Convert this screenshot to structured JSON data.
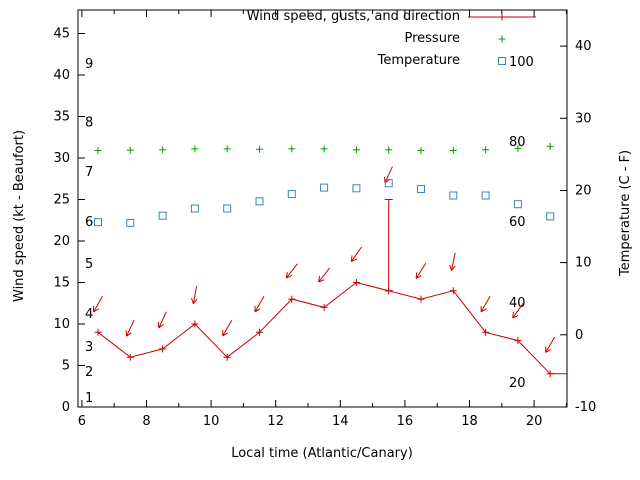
{
  "chart_data": {
    "type": "line",
    "title": "",
    "xlabel": "Local time (Atlantic/Canary)",
    "ylabel_left": "Wind speed (kt - Beaufort)",
    "ylabel_right": "Temperature (C - F)",
    "xlim": [
      5.88,
      21.02
    ],
    "ylim_left": [
      0,
      47.83
    ],
    "ylim_right": [
      -10,
      45
    ],
    "x_ticks": [
      6,
      8,
      10,
      12,
      14,
      16,
      18,
      20
    ],
    "x_minor_ticks": [
      7,
      9,
      11,
      13,
      15,
      17,
      19,
      21
    ],
    "y_ticks_left": [
      0,
      5,
      10,
      15,
      20,
      25,
      30,
      35,
      40,
      45
    ],
    "y_ticks_right": [
      -10,
      0,
      10,
      20,
      30,
      40
    ],
    "beaufort_scale": [
      {
        "bf": "1",
        "kt": 1.1
      },
      {
        "bf": "2",
        "kt": 4.2
      },
      {
        "bf": "3",
        "kt": 7.2
      },
      {
        "bf": "4",
        "kt": 11.2
      },
      {
        "bf": "5",
        "kt": 17.2
      },
      {
        "bf": "6",
        "kt": 22.3
      },
      {
        "bf": "7",
        "kt": 28.3
      },
      {
        "bf": "8",
        "kt": 34.3
      },
      {
        "bf": "9",
        "kt": 41.3
      }
    ],
    "fahrenheit_scale": [
      {
        "f": "20",
        "c": -6.7
      },
      {
        "f": "40",
        "c": 4.4
      },
      {
        "f": "60",
        "c": 15.6
      },
      {
        "f": "80",
        "c": 26.7
      },
      {
        "f": "100",
        "c": 37.8
      }
    ],
    "legend": [
      {
        "label": "Wind speed, gusts, and direction",
        "marker": "line-plus",
        "color": "#cc0000"
      },
      {
        "label": "Pressure",
        "marker": "plus",
        "color": "#00a000"
      },
      {
        "label": "Temperature",
        "marker": "open-square",
        "color": "#3388bb"
      }
    ],
    "series": [
      {
        "name": "wind",
        "type": "line-points-gusts-arrows",
        "color": "#cc0000",
        "points": [
          {
            "t": 6.5,
            "kt": 9,
            "gust_kt": null,
            "arrow_kt": 12.4,
            "arrow_deg": 30
          },
          {
            "t": 7.5,
            "kt": 6,
            "gust_kt": null,
            "arrow_kt": 9.5,
            "arrow_deg": 25
          },
          {
            "t": 8.5,
            "kt": 7,
            "gust_kt": null,
            "arrow_kt": 10.5,
            "arrow_deg": 25
          },
          {
            "t": 9.5,
            "kt": 10,
            "gust_kt": null,
            "arrow_kt": 13.5,
            "arrow_deg": 10
          },
          {
            "t": 10.5,
            "kt": 6,
            "gust_kt": null,
            "arrow_kt": 9.5,
            "arrow_deg": 30
          },
          {
            "t": 11.5,
            "kt": 9,
            "gust_kt": null,
            "arrow_kt": 12.4,
            "arrow_deg": 30
          },
          {
            "t": 12.5,
            "kt": 13,
            "gust_kt": null,
            "arrow_kt": 16.4,
            "arrow_deg": 38
          },
          {
            "t": 13.5,
            "kt": 12,
            "gust_kt": null,
            "arrow_kt": 15.9,
            "arrow_deg": 38
          },
          {
            "t": 14.5,
            "kt": 15,
            "gust_kt": null,
            "arrow_kt": 18.4,
            "arrow_deg": 35
          },
          {
            "t": 15.5,
            "kt": 14,
            "gust_kt": 25,
            "arrow_kt": 28.0,
            "arrow_deg": 25
          },
          {
            "t": 16.5,
            "kt": 13,
            "gust_kt": null,
            "arrow_kt": 16.4,
            "arrow_deg": 32
          },
          {
            "t": 17.5,
            "kt": 14,
            "gust_kt": null,
            "arrow_kt": 17.5,
            "arrow_deg": 12
          },
          {
            "t": 18.5,
            "kt": 9,
            "gust_kt": null,
            "arrow_kt": 12.4,
            "arrow_deg": 30
          },
          {
            "t": 19.5,
            "kt": 8,
            "gust_kt": null,
            "arrow_kt": 11.6,
            "arrow_deg": 35
          },
          {
            "t": 20.5,
            "kt": 4,
            "gust_kt": null,
            "arrow_kt": 7.5,
            "arrow_deg": 30
          },
          {
            "t": 21.0,
            "kt": 4,
            "gust_kt": null,
            "arrow_kt": null,
            "arrow_deg": null,
            "marker": false
          }
        ]
      },
      {
        "name": "pressure",
        "type": "points",
        "marker": "plus",
        "color": "#00a000",
        "t": [
          6.5,
          7.5,
          8.5,
          9.5,
          10.5,
          11.5,
          12.5,
          13.5,
          14.5,
          15.5,
          16.5,
          17.5,
          18.5,
          19.5,
          20.5
        ],
        "values": [
          30.9,
          30.95,
          31.0,
          31.1,
          31.1,
          31.05,
          31.1,
          31.1,
          31.0,
          31.0,
          30.9,
          30.9,
          31.0,
          31.15,
          31.4
        ]
      },
      {
        "name": "temperature",
        "type": "points",
        "marker": "open-square",
        "color": "#3388bb",
        "t": [
          6.5,
          7.5,
          8.5,
          9.5,
          10.5,
          11.5,
          12.5,
          13.5,
          14.5,
          15.5,
          16.5,
          17.5,
          18.5,
          19.5,
          20.5
        ],
        "values_c": [
          15.6,
          15.5,
          16.5,
          17.5,
          17.5,
          18.5,
          19.5,
          20.4,
          20.3,
          21.0,
          20.2,
          19.3,
          19.3,
          18.1,
          16.4
        ]
      }
    ]
  }
}
